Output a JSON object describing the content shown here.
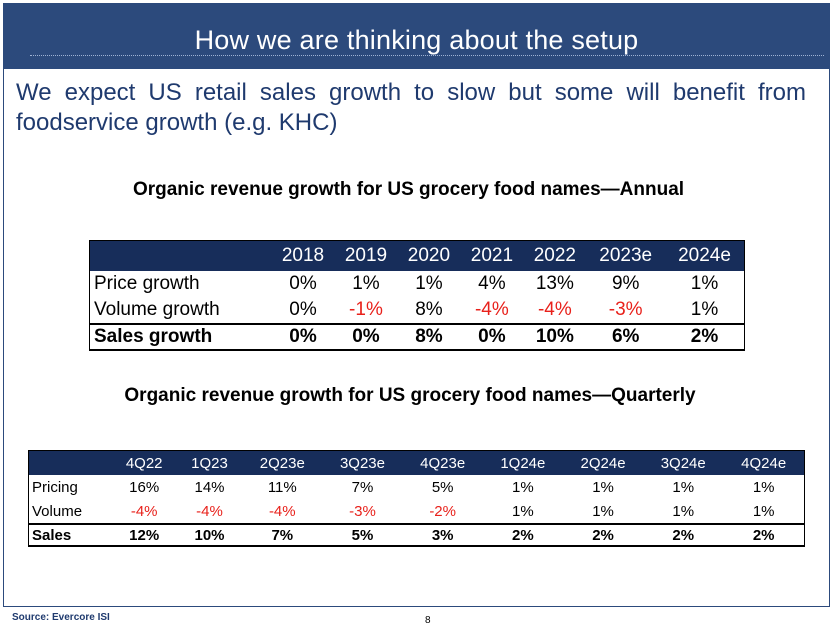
{
  "title": "How we are thinking about the setup",
  "subtitle": "We expect US retail sales growth to slow but some will benefit from foodservice growth (e.g. KHC)",
  "annual": {
    "heading": "Organic revenue growth for US grocery food names—Annual",
    "columns": [
      "2018",
      "2019",
      "2020",
      "2021",
      "2022",
      "2023e",
      "2024e"
    ],
    "rows": [
      {
        "label": "Price growth",
        "values": [
          "0%",
          "1%",
          "1%",
          "4%",
          "13%",
          "9%",
          "1%"
        ]
      },
      {
        "label": "Volume growth",
        "values": [
          "0%",
          "-1%",
          "8%",
          "-4%",
          "-4%",
          "-3%",
          "1%"
        ]
      },
      {
        "label": "Sales growth",
        "values": [
          "0%",
          "0%",
          "8%",
          "0%",
          "10%",
          "6%",
          "2%"
        ]
      }
    ]
  },
  "quarterly": {
    "heading": "Organic revenue growth for US grocery food names—Quarterly",
    "columns": [
      "4Q22",
      "1Q23",
      "2Q23e",
      "3Q23e",
      "4Q23e",
      "1Q24e",
      "2Q24e",
      "3Q24e",
      "4Q24e"
    ],
    "rows": [
      {
        "label": "Pricing",
        "values": [
          "16%",
          "14%",
          "11%",
          "7%",
          "5%",
          "1%",
          "1%",
          "1%",
          "1%"
        ]
      },
      {
        "label": "Volume",
        "values": [
          "-4%",
          "-4%",
          "-4%",
          "-3%",
          "-2%",
          "1%",
          "1%",
          "1%",
          "1%"
        ]
      },
      {
        "label": "Sales",
        "values": [
          "12%",
          "10%",
          "7%",
          "5%",
          "3%",
          "2%",
          "2%",
          "2%",
          "2%"
        ]
      }
    ]
  },
  "footer": {
    "source": "Source: Evercore ISI",
    "page_number": "8"
  },
  "colors": {
    "title_bar": "#2c4a7c",
    "table_header": "#172d5a",
    "subtitle_text": "#1f3a6e",
    "negative": "#e8211b"
  }
}
